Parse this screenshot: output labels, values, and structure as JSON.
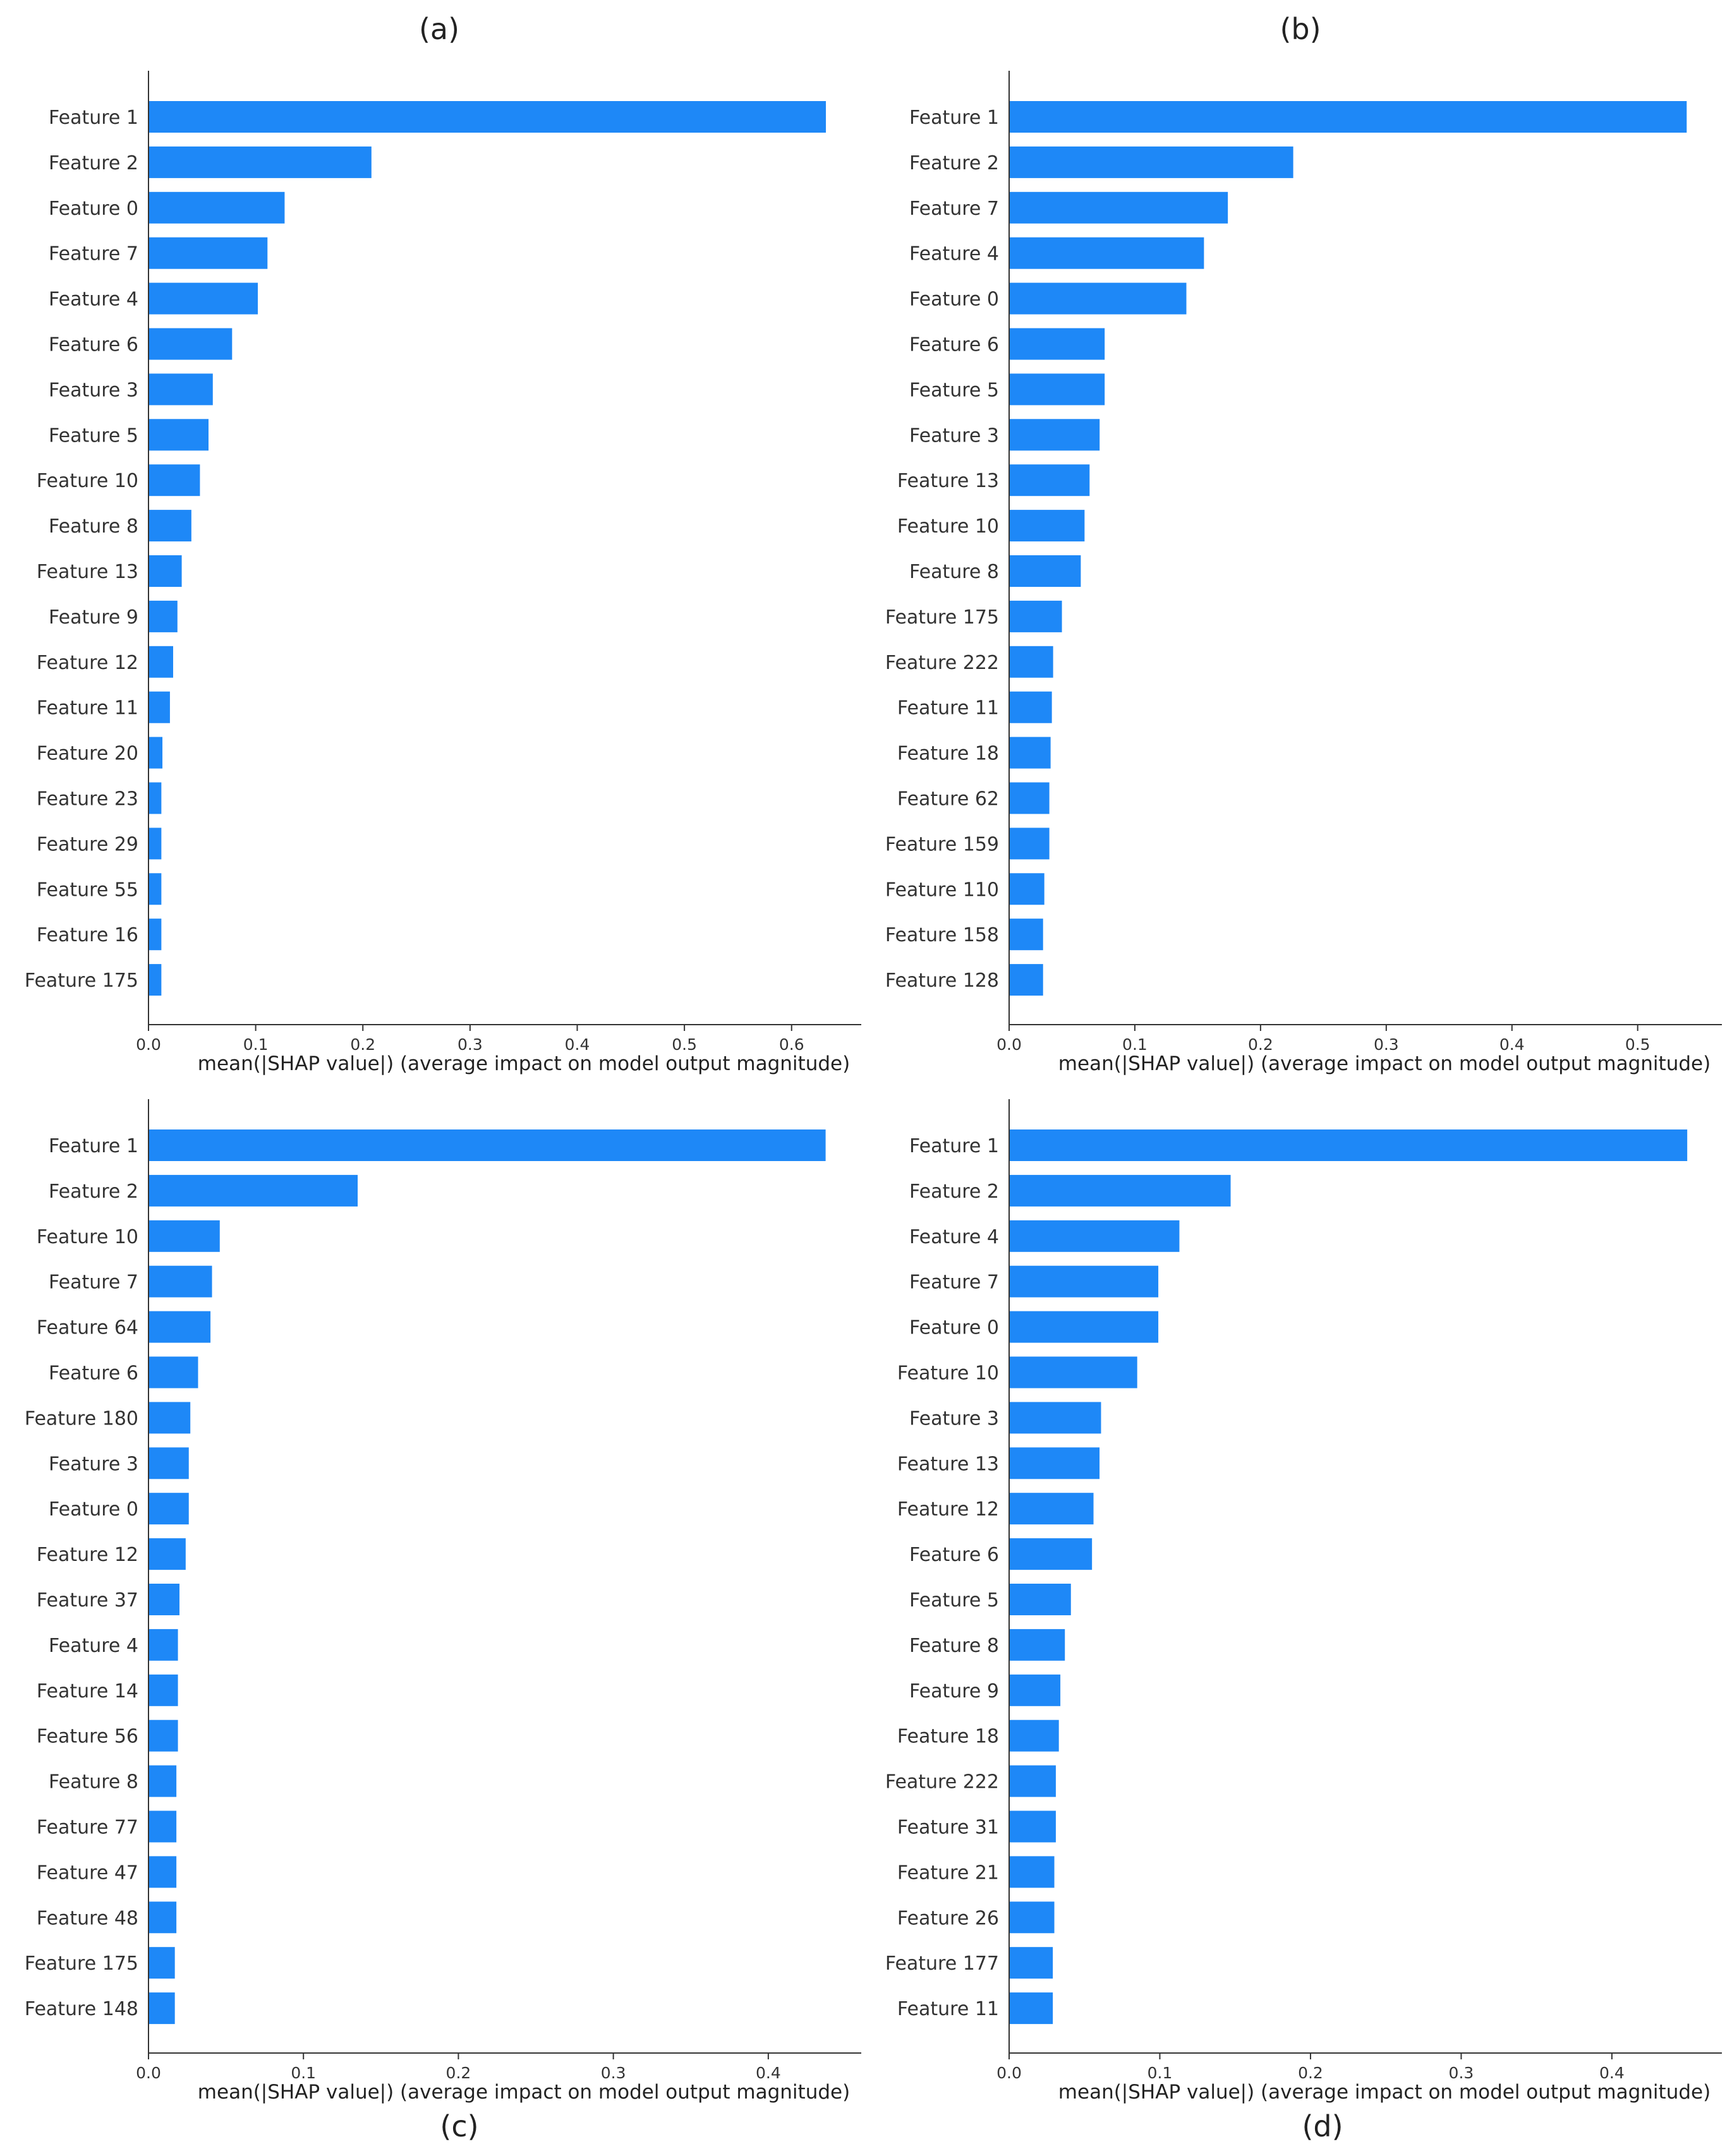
{
  "chart_data": [
    {
      "type": "bar",
      "orientation": "horizontal",
      "panel_label": "(a)",
      "categories": [
        "Feature 1",
        "Feature 2",
        "Feature 0",
        "Feature 7",
        "Feature 4",
        "Feature 6",
        "Feature 3",
        "Feature 5",
        "Feature 10",
        "Feature 8",
        "Feature 13",
        "Feature 9",
        "Feature 12",
        "Feature 11",
        "Feature 20",
        "Feature 23",
        "Feature 29",
        "Feature 55",
        "Feature 16",
        "Feature 175"
      ],
      "values": [
        0.632,
        0.208,
        0.127,
        0.111,
        0.102,
        0.078,
        0.06,
        0.056,
        0.048,
        0.04,
        0.031,
        0.027,
        0.023,
        0.02,
        0.013,
        0.012,
        0.012,
        0.012,
        0.012,
        0.012
      ],
      "xlabel": "mean(|SHAP value|) (average impact on model output magnitude)",
      "xlim": [
        0,
        0.665
      ],
      "xticks": [
        "0.0",
        "0.1",
        "0.2",
        "0.3",
        "0.4",
        "0.5",
        "0.6"
      ],
      "color": "#1e88f7",
      "grid": false
    },
    {
      "type": "bar",
      "orientation": "horizontal",
      "panel_label": "(b)",
      "categories": [
        "Feature 1",
        "Feature 2",
        "Feature 7",
        "Feature 4",
        "Feature 0",
        "Feature 6",
        "Feature 5",
        "Feature 3",
        "Feature 13",
        "Feature 10",
        "Feature 8",
        "Feature 175",
        "Feature 222",
        "Feature 11",
        "Feature 18",
        "Feature 62",
        "Feature 159",
        "Feature 110",
        "Feature 158",
        "Feature 128"
      ],
      "values": [
        0.539,
        0.226,
        0.174,
        0.155,
        0.141,
        0.076,
        0.076,
        0.072,
        0.064,
        0.06,
        0.057,
        0.042,
        0.035,
        0.034,
        0.033,
        0.032,
        0.032,
        0.028,
        0.027,
        0.027
      ],
      "xlabel": "mean(|SHAP value|) (average impact on model output magnitude)",
      "xlim": [
        0,
        0.567
      ],
      "xticks": [
        "0.0",
        "0.1",
        "0.2",
        "0.3",
        "0.4",
        "0.5"
      ],
      "color": "#1e88f7",
      "grid": false
    },
    {
      "type": "bar",
      "orientation": "horizontal",
      "panel_label": "(c)",
      "categories": [
        "Feature 1",
        "Feature 2",
        "Feature 10",
        "Feature 7",
        "Feature 64",
        "Feature 6",
        "Feature 180",
        "Feature 3",
        "Feature 0",
        "Feature 12",
        "Feature 37",
        "Feature 4",
        "Feature 14",
        "Feature 56",
        "Feature 8",
        "Feature 77",
        "Feature 47",
        "Feature 48",
        "Feature 175",
        "Feature 148"
      ],
      "values": [
        0.437,
        0.135,
        0.046,
        0.041,
        0.04,
        0.032,
        0.027,
        0.026,
        0.026,
        0.024,
        0.02,
        0.019,
        0.019,
        0.019,
        0.018,
        0.018,
        0.018,
        0.018,
        0.017,
        0.017
      ],
      "xlabel": "mean(|SHAP value|) (average impact on model output magnitude)",
      "xlim": [
        0,
        0.46
      ],
      "xticks": [
        "0.0",
        "0.1",
        "0.2",
        "0.3",
        "0.4"
      ],
      "color": "#1e88f7",
      "grid": false
    },
    {
      "type": "bar",
      "orientation": "horizontal",
      "panel_label": "(d)",
      "categories": [
        "Feature 1",
        "Feature 2",
        "Feature 4",
        "Feature 7",
        "Feature 0",
        "Feature 10",
        "Feature 3",
        "Feature 13",
        "Feature 12",
        "Feature 6",
        "Feature 5",
        "Feature 8",
        "Feature 9",
        "Feature 18",
        "Feature 222",
        "Feature 31",
        "Feature 21",
        "Feature 26",
        "Feature 177",
        "Feature 11"
      ],
      "values": [
        0.45,
        0.147,
        0.113,
        0.099,
        0.099,
        0.085,
        0.061,
        0.06,
        0.056,
        0.055,
        0.041,
        0.037,
        0.034,
        0.033,
        0.031,
        0.031,
        0.03,
        0.03,
        0.029,
        0.029
      ],
      "xlabel": "mean(|SHAP value|) (average impact on model output magnitude)",
      "xlim": [
        0,
        0.473
      ],
      "xticks": [
        "0.0",
        "0.1",
        "0.2",
        "0.3",
        "0.4"
      ],
      "color": "#1e88f7",
      "grid": false
    }
  ]
}
